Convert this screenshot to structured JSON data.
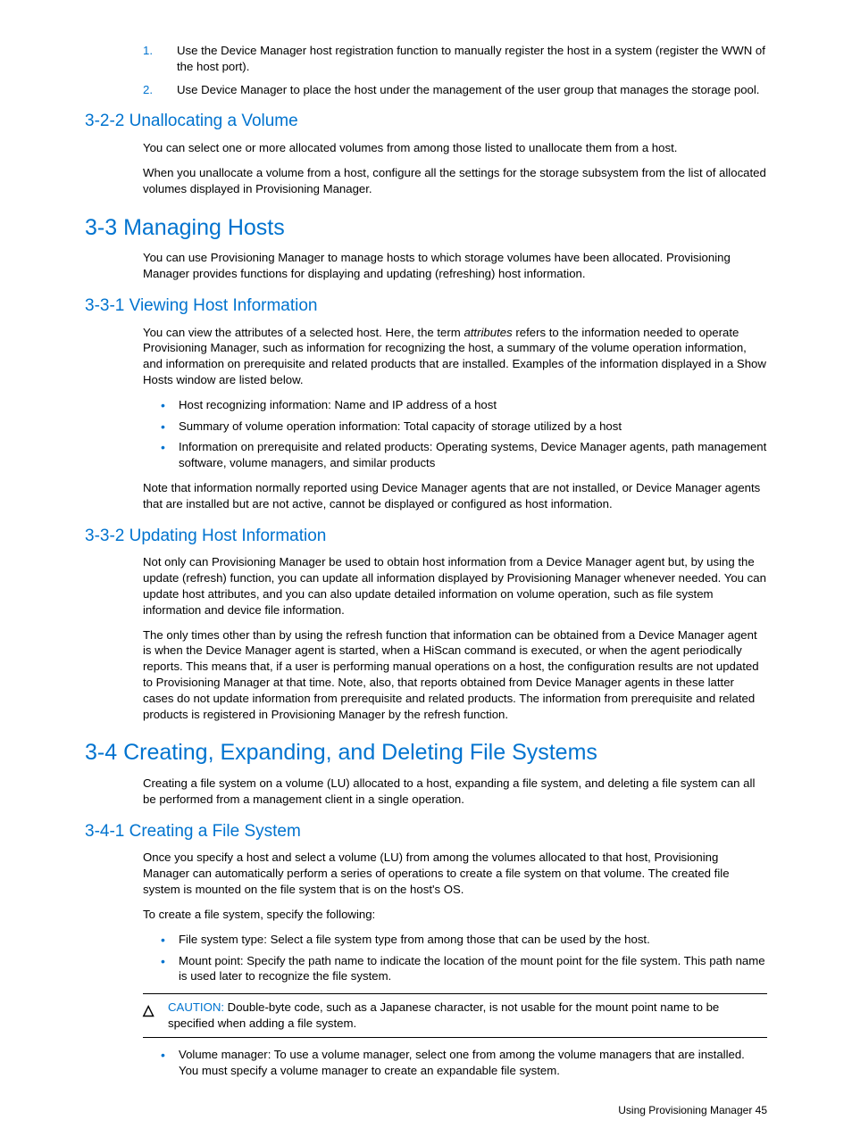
{
  "colors": {
    "link_blue": "#0073cf",
    "text": "#000000",
    "background": "#ffffff"
  },
  "ol1": {
    "i1": {
      "n": "1.",
      "t": "Use the Device Manager host registration function to manually register the host in a system (register the WWN of the host port)."
    },
    "i2": {
      "n": "2.",
      "t": "Use Device Manager to place the host under the management of the user group that manages the storage pool."
    }
  },
  "s322": {
    "h": "3-2-2 Unallocating a Volume",
    "p1": "You can select one or more allocated volumes from among those listed to unallocate them from a host.",
    "p2": "When you unallocate a volume from a host, configure all the settings for the storage subsystem from the list of allocated volumes displayed in Provisioning Manager."
  },
  "s33": {
    "h": "3-3 Managing Hosts",
    "p1": "You can use Provisioning Manager to manage hosts to which storage volumes have been allocated. Provisioning Manager provides functions for displaying and updating (refreshing) host information."
  },
  "s331": {
    "h": "3-3-1 Viewing Host Information",
    "p1a": "You can view the attributes of a selected host. Here, the term ",
    "p1b": "attributes",
    "p1c": " refers to the information needed to operate Provisioning Manager, such as information for recognizing the host, a summary of the volume operation information, and information on prerequisite and related products that are installed. Examples of the information displayed in a Show Hosts window are listed below.",
    "b1": "Host recognizing information: Name and IP address of a host",
    "b2": "Summary of volume operation information: Total capacity of storage utilized by a host",
    "b3": "Information on prerequisite and related products: Operating systems, Device Manager agents, path management software, volume managers, and similar products",
    "p2": "Note that information normally reported using Device Manager agents that are not installed, or Device Manager agents that are installed but are not active, cannot be displayed or configured as host information."
  },
  "s332": {
    "h": "3-3-2 Updating Host Information",
    "p1": "Not only can Provisioning Manager be used to obtain host information from a Device Manager agent but, by using the update (refresh) function, you can update all information displayed by Provisioning Manager whenever needed. You can update host attributes, and you can also update detailed information on volume operation, such as file system information and device file information.",
    "p2": "The only times other than by using the refresh function that information can be obtained from a Device Manager agent is when the Device Manager agent is started, when a HiScan command is executed, or when the agent periodically reports. This means that, if a user is performing manual operations on a host, the configuration results are not updated to Provisioning Manager at that time. Note, also, that reports obtained from Device Manager agents in these latter cases do not update information from prerequisite and related products. The information from prerequisite and related products is registered in Provisioning Manager by the refresh function."
  },
  "s34": {
    "h": "3-4 Creating, Expanding, and Deleting File Systems",
    "p1": "Creating a file system on a volume (LU) allocated to a host, expanding a file system, and deleting a file system can all be performed from a management client in a single operation."
  },
  "s341": {
    "h": "3-4-1 Creating a File System",
    "p1": "Once you specify a host and select a volume (LU) from among the volumes allocated to that host, Provisioning Manager can automatically perform a series of operations to create a file system on that volume. The created file system is mounted on the file system that is on the host's OS.",
    "p2": "To create a file system, specify the following:",
    "b1": "File system type: Select a file system type from among those that can be used by the host.",
    "b2": "Mount point: Specify the path name to indicate the location of the mount point for the file system. This path name is used later to recognize the file system.",
    "caution_label": "CAUTION:",
    "caution_text": "  Double-byte code, such as a Japanese character, is not usable for the mount point name to be specified when adding a file system.",
    "b3": "Volume manager: To use a volume manager, select one from among the volume managers that are installed. You must specify a volume manager to create an expandable file system."
  },
  "footer": {
    "text": "Using Provisioning Manager  45"
  }
}
